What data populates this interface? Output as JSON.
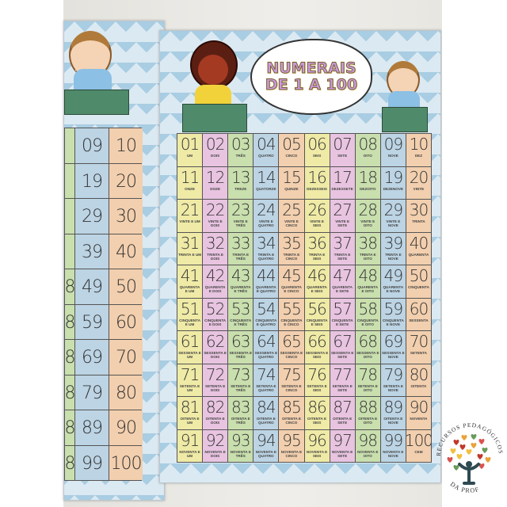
{
  "poster": {
    "title_line1": "NUMERAIS",
    "title_line2": "DE 1 A 100",
    "column_colors": [
      "#efeaa6",
      "#e8c4e1",
      "#c9dfae",
      "#bcd4e4",
      "#f2cfae",
      "#efeaa6",
      "#e8c4e1",
      "#c9dfae",
      "#bcd4e4",
      "#f2cfae"
    ],
    "numbers": [
      "01",
      "02",
      "03",
      "04",
      "05",
      "06",
      "07",
      "08",
      "09",
      "10",
      "11",
      "12",
      "13",
      "14",
      "15",
      "16",
      "17",
      "18",
      "19",
      "20",
      "21",
      "22",
      "23",
      "24",
      "25",
      "26",
      "27",
      "28",
      "29",
      "30",
      "31",
      "32",
      "33",
      "34",
      "35",
      "36",
      "37",
      "38",
      "39",
      "40",
      "41",
      "42",
      "43",
      "44",
      "45",
      "46",
      "47",
      "48",
      "49",
      "50",
      "51",
      "52",
      "53",
      "54",
      "55",
      "56",
      "57",
      "58",
      "59",
      "60",
      "61",
      "62",
      "63",
      "64",
      "65",
      "66",
      "67",
      "68",
      "69",
      "70",
      "71",
      "72",
      "73",
      "74",
      "75",
      "76",
      "77",
      "78",
      "79",
      "80",
      "81",
      "82",
      "83",
      "84",
      "85",
      "86",
      "87",
      "88",
      "89",
      "90",
      "91",
      "92",
      "93",
      "94",
      "95",
      "96",
      "97",
      "98",
      "99",
      "100"
    ],
    "words": [
      "UM",
      "DOIS",
      "TRÊS",
      "QUATRO",
      "CINCO",
      "SEIS",
      "SETE",
      "OITO",
      "NOVE",
      "DEZ",
      "ONZE",
      "DOZE",
      "TREZE",
      "QUATORZE",
      "QUINZE",
      "DEZESSEIS",
      "DEZESSETE",
      "DEZOITO",
      "DEZENOVE",
      "VINTE",
      "VINTE E UM",
      "VINTE E DOIS",
      "VINTE E TRÊS",
      "VINTE E QUATRO",
      "VINTE E CINCO",
      "VINTE E SEIS",
      "VINTE E SETE",
      "VINTE E OITO",
      "VINTE E NOVE",
      "TRINTA",
      "TRINTA E UM",
      "TRINTA E DOIS",
      "TRINTA E TRÊS",
      "TRINTA E QUATRO",
      "TRINTA E CINCO",
      "TRINTA E SEIS",
      "TRINTA E SETE",
      "TRINTA E OITO",
      "TRINTA E NOVE",
      "QUARENTA",
      "QUARENTA E UM",
      "QUARENTA E DOIS",
      "QUARENTA E TRÊS",
      "QUARENTA E QUATRO",
      "QUARENTA E CINCO",
      "QUARENTA E SEIS",
      "QUARENTA E SETE",
      "QUARENTA E OITO",
      "QUARENTA E NOVE",
      "CINQUENTA",
      "CINQUENTA E UM",
      "CINQUENTA E DOIS",
      "CINQUENTA E TRÊS",
      "CINQUENTA E QUATRO",
      "CINQUENTA E CINCO",
      "CINQUENTA E SEIS",
      "CINQUENTA E SETE",
      "CINQUENTA E OITO",
      "CINQUENTA E NOVE",
      "SESSENTA",
      "SESSENTA E UM",
      "SESSENTA E DOIS",
      "SESSENTA E TRÊS",
      "SESSENTA E QUATRO",
      "SESSENTA E CINCO",
      "SESSENTA E SEIS",
      "SESSENTA E SETE",
      "SESSENTA E OITO",
      "SESSENTA E NOVE",
      "SETENTA",
      "SETENTA E UM",
      "SETENTA E DOIS",
      "SETENTA E TRÊS",
      "SETENTA E QUATRO",
      "SETENTA E CINCO",
      "SETENTA E SEIS",
      "SETENTA E SETE",
      "SETENTA E OITO",
      "SETENTA E NOVE",
      "OITENTA",
      "OITENTA E UM",
      "OITENTA E DOIS",
      "OITENTA E TRÊS",
      "OITENTA E QUATRO",
      "OITENTA E CINCO",
      "OITENTA E SEIS",
      "OITENTA E SETE",
      "OITENTA E OITO",
      "OITENTA E NOVE",
      "NOVENTA",
      "NOVENTA E UM",
      "NOVENTA E DOIS",
      "NOVENTA E TRÊS",
      "NOVENTA E QUATRO",
      "NOVENTA E CINCO",
      "NOVENTA E SEIS",
      "NOVENTA E SETE",
      "NOVENTA E OITO",
      "NOVENTA E NOVE",
      "CEM"
    ]
  },
  "left_poster": {
    "column_colors": [
      "#c9dfae",
      "#bcd4e4",
      "#f2cfae"
    ],
    "rows": [
      [
        "",
        "09",
        "10"
      ],
      [
        "",
        "19",
        "20"
      ],
      [
        "",
        "29",
        "30"
      ],
      [
        "",
        "39",
        "40"
      ],
      [
        "8",
        "49",
        "50"
      ],
      [
        "8",
        "59",
        "60"
      ],
      [
        "8",
        "69",
        "70"
      ],
      [
        "8",
        "79",
        "80"
      ],
      [
        "8",
        "89",
        "90"
      ],
      [
        "8",
        "99",
        "100"
      ]
    ]
  },
  "logo": {
    "text_top": "RECURSOS PEDAGÓGICOS",
    "text_bottom": "DA PROF",
    "heart_colors": [
      "#c0392b",
      "#e8a33a",
      "#6a9a5a",
      "#d9534f",
      "#f0c040"
    ]
  }
}
